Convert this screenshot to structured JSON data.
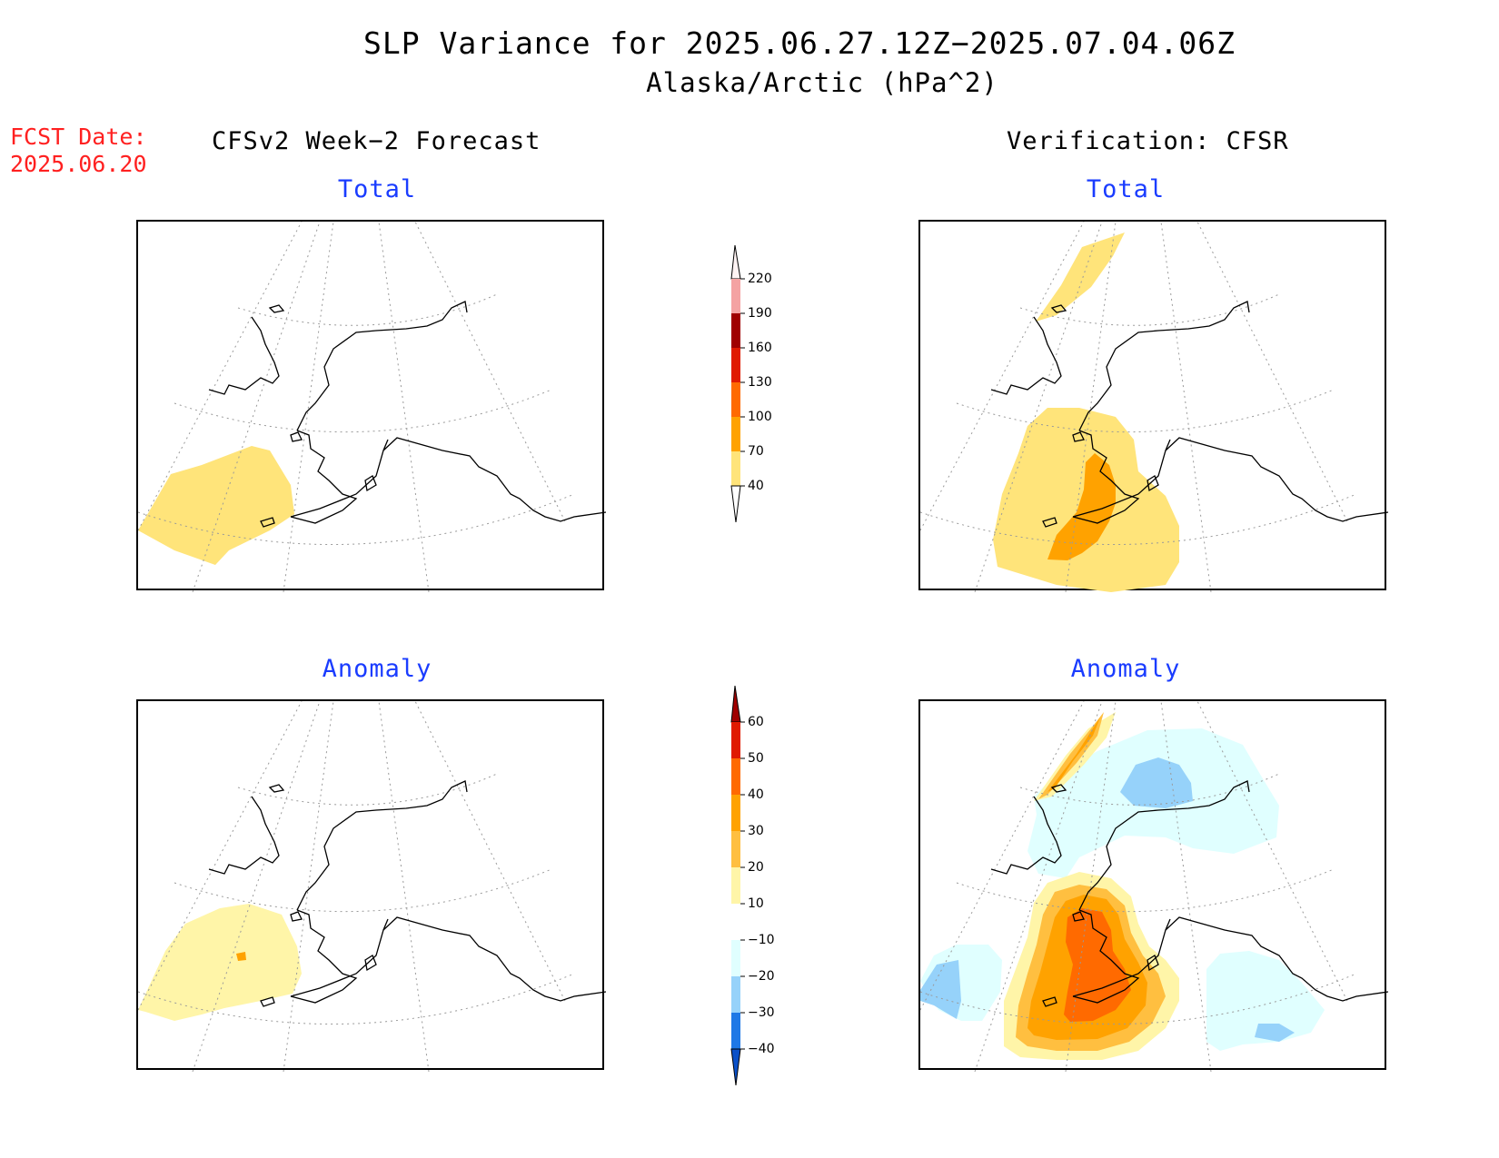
{
  "header": {
    "title": "SLP Variance for 2025.06.27.12Z−2025.07.04.06Z",
    "subtitle": "Alaska/Arctic (hPa^2)",
    "fcst_label": "FCST Date:",
    "fcst_date": "2025.06.20",
    "left_column": "CFSv2 Week−2 Forecast",
    "right_column": "Verification: CFSR"
  },
  "panels": {
    "fcst_total": {
      "title": "Total"
    },
    "verif_total": {
      "title": "Total"
    },
    "fcst_anomaly": {
      "title": "Anomaly"
    },
    "verif_anomaly": {
      "title": "Anomaly"
    }
  },
  "colorbars": {
    "total": {
      "levels": [
        "40",
        "70",
        "100",
        "130",
        "160",
        "190",
        "220"
      ],
      "colors": [
        "#ffe47a",
        "#ffa200",
        "#ff6a00",
        "#e01a00",
        "#a00000",
        "#f4a3a3",
        "#ffe6e6"
      ]
    },
    "anomaly": {
      "levels": [
        "60",
        "50",
        "40",
        "30",
        "20",
        "10",
        "−10",
        "−20",
        "−30",
        "−40"
      ],
      "colors_top_to_bottom": [
        "#a00000",
        "#e01a00",
        "#ff6a00",
        "#ffa200",
        "#ffbf40",
        "#fff5a8",
        "#ffffff",
        "#e0ffff",
        "#96d2fa",
        "#1e78e6",
        "#0a50c8"
      ]
    }
  },
  "colors": {
    "title_text": "#000000",
    "fcst_text": "#ff2020",
    "panel_title": "#1a3cff"
  }
}
